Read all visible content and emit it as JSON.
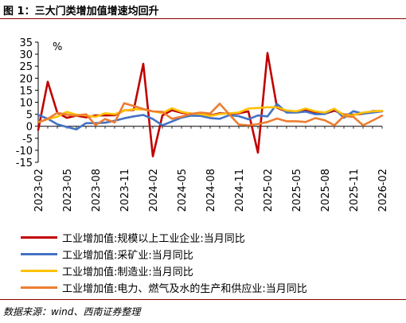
{
  "title": "图 1：三大门类增加值增速均回升",
  "source": "数据来源：wind、西南证券整理",
  "chart_data": {
    "type": "line",
    "unit_label": "%",
    "ylim": [
      -15,
      35
    ],
    "yticks": [
      35,
      30,
      25,
      20,
      15,
      10,
      5,
      0,
      -5,
      -10,
      -15
    ],
    "x": [
      "2023-02",
      "2023-03",
      "2023-04",
      "2023-05",
      "2023-06",
      "2023-07",
      "2023-08",
      "2023-09",
      "2023-10",
      "2023-11",
      "2023-12",
      "2024-01",
      "2024-02",
      "2024-03",
      "2024-04",
      "2024-05",
      "2024-06",
      "2024-07",
      "2024-08",
      "2024-09",
      "2024-10",
      "2024-11",
      "2024-12",
      "2025-01",
      "2025-02",
      "2025-03",
      "2025-04",
      "2025-05",
      "2025-06",
      "2025-07",
      "2025-08",
      "2025-09",
      "2025-10",
      "2025-11",
      "2025-12",
      "2026-01",
      "2026-02"
    ],
    "xtick_labels": [
      "2023-02",
      "2023-05",
      "2023-08",
      "2023-11",
      "2024-02",
      "2024-05",
      "2024-08",
      "2024-11",
      "2025-02",
      "2025-05",
      "2025-08",
      "2025-11",
      "2026-02"
    ],
    "grid": false,
    "legend_position": "bottom",
    "series": [
      {
        "name": "工业增加值:规模以上工业企业:当月同比",
        "color": "#c00000",
        "values": [
          -1.5,
          18.5,
          5.6,
          3.5,
          4.4,
          3.7,
          4.5,
          4.5,
          4.6,
          6.6,
          6.8,
          26.0,
          -12.5,
          4.5,
          6.7,
          5.6,
          5.3,
          5.1,
          4.5,
          5.4,
          5.3,
          5.4,
          6.2,
          -11.0,
          30.5,
          7.7,
          6.1,
          5.8,
          6.8,
          5.7,
          5.2,
          6.5,
          4.9,
          4.8,
          5.2,
          6.3,
          6.3
        ]
      },
      {
        "name": "工业增加值:采矿业:当月同比",
        "color": "#4472c4",
        "values": [
          4.7,
          3.1,
          0.8,
          -0.3,
          -1.3,
          1.3,
          1.3,
          1.5,
          2.3,
          3.3,
          4.1,
          4.7,
          3.0,
          0.4,
          2.0,
          3.6,
          4.4,
          4.3,
          3.4,
          3.1,
          4.6,
          4.2,
          2.9,
          4.5,
          4.1,
          9.3,
          5.7,
          5.7,
          6.1,
          5.0,
          5.1,
          7.3,
          3.5,
          6.3,
          5.2,
          5.7,
          6.2
        ]
      },
      {
        "name": "工业增加值:制造业:当月同比",
        "color": "#ffc000",
        "values": [
          1.7,
          3.0,
          4.0,
          6.0,
          4.8,
          4.5,
          3.9,
          5.4,
          5.0,
          6.5,
          7.1,
          7.0,
          6.2,
          5.5,
          7.5,
          6.0,
          5.3,
          5.1,
          4.3,
          5.1,
          5.4,
          5.7,
          7.4,
          7.6,
          7.9,
          7.9,
          6.6,
          6.2,
          7.4,
          6.2,
          5.7,
          7.3,
          4.6,
          4.6,
          5.7,
          6.2,
          6.4
        ]
      },
      {
        "name": "工业增加值:电力、燃气及水的生产和供应业:当月同比",
        "color": "#ed7d31",
        "values": [
          1.6,
          3.1,
          5.6,
          4.8,
          4.4,
          5.0,
          0.5,
          3.0,
          1.6,
          9.6,
          8.4,
          7.2,
          6.2,
          6.0,
          3.1,
          4.0,
          5.2,
          5.7,
          5.3,
          9.4,
          4.9,
          0.7,
          0.4,
          0.9,
          1.8,
          3.2,
          2.1,
          2.1,
          1.8,
          3.4,
          2.5,
          0.4,
          4.2,
          3.9,
          0.4,
          2.4,
          4.4
        ]
      }
    ]
  }
}
